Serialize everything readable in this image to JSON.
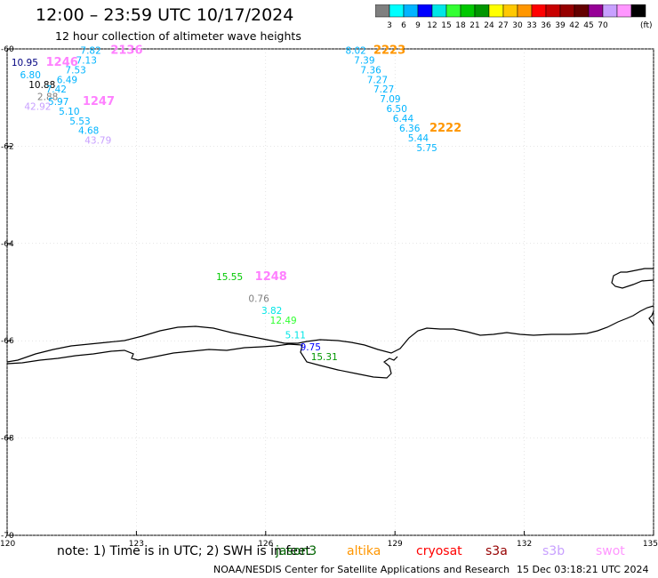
{
  "header": {
    "title": "12:00 – 23:59 UTC 10/17/2024",
    "subtitle": "12 hour collection of altimeter wave heights"
  },
  "colorbar": {
    "swatches": [
      "#7f7f7f",
      "#00ffff",
      "#00b4ff",
      "#0000ff",
      "#00e6e6",
      "#33ff33",
      "#00c800",
      "#009600",
      "#ffff00",
      "#ffc800",
      "#ff9600",
      "#ff0000",
      "#c80000",
      "#960000",
      "#640000",
      "#960096",
      "#c8a0ff",
      "#ff96ff",
      "#000000"
    ],
    "labels": [
      "3",
      "6",
      "9",
      "12",
      "15",
      "18",
      "21",
      "24",
      "27",
      "30",
      "33",
      "36",
      "39",
      "42",
      "45",
      "70"
    ],
    "unit": "(ft)"
  },
  "axes": {
    "x_ticks": [
      "120",
      "123",
      "126",
      "129",
      "132",
      "135"
    ],
    "y_ticks": [
      "-60",
      "-62",
      "-64",
      "-66",
      "-68",
      "-70"
    ]
  },
  "labels": [
    {
      "t": "2136",
      "c": "#ff80ff",
      "lon": 122.4,
      "lat": -60.1,
      "b": true
    },
    {
      "t": "7.82",
      "c": "#00b4ff",
      "lon": 121.7,
      "lat": -60.1
    },
    {
      "t": "7.13",
      "c": "#00b4ff",
      "lon": 121.6,
      "lat": -60.3
    },
    {
      "t": "1246",
      "c": "#ff80ff",
      "lon": 120.9,
      "lat": -60.35,
      "b": true
    },
    {
      "t": "10.95",
      "c": "#000080",
      "lon": 120.1,
      "lat": -60.35
    },
    {
      "t": "7.53",
      "c": "#00b4ff",
      "lon": 121.35,
      "lat": -60.5
    },
    {
      "t": "6.80",
      "c": "#00b4ff",
      "lon": 120.3,
      "lat": -60.6
    },
    {
      "t": "6.49",
      "c": "#00b4ff",
      "lon": 121.15,
      "lat": -60.7
    },
    {
      "t": "10.88",
      "c": "#000000",
      "lon": 120.5,
      "lat": -60.8
    },
    {
      "t": "7.42",
      "c": "#00b4ff",
      "lon": 120.9,
      "lat": -60.9
    },
    {
      "t": "2.88",
      "c": "#7f7f7f",
      "lon": 120.7,
      "lat": -61.05
    },
    {
      "t": "5.97",
      "c": "#00b4ff",
      "lon": 120.95,
      "lat": -61.15
    },
    {
      "t": "1247",
      "c": "#ff80ff",
      "lon": 121.75,
      "lat": -61.15,
      "b": true
    },
    {
      "t": "42.92",
      "c": "#c8a0ff",
      "lon": 120.4,
      "lat": -61.25
    },
    {
      "t": "5.10",
      "c": "#00b4ff",
      "lon": 121.2,
      "lat": -61.35
    },
    {
      "t": "5.53",
      "c": "#00b4ff",
      "lon": 121.45,
      "lat": -61.55
    },
    {
      "t": "4.68",
      "c": "#00b4ff",
      "lon": 121.65,
      "lat": -61.75
    },
    {
      "t": "43.79",
      "c": "#c8a0ff",
      "lon": 121.8,
      "lat": -61.95
    },
    {
      "t": "8.02",
      "c": "#00b4ff",
      "lon": 127.85,
      "lat": -60.1
    },
    {
      "t": "2223",
      "c": "#ff9600",
      "lon": 128.5,
      "lat": -60.1,
      "b": true
    },
    {
      "t": "7.39",
      "c": "#00b4ff",
      "lon": 128.05,
      "lat": -60.3
    },
    {
      "t": "7.36",
      "c": "#00b4ff",
      "lon": 128.2,
      "lat": -60.5
    },
    {
      "t": "7.27",
      "c": "#00b4ff",
      "lon": 128.35,
      "lat": -60.7
    },
    {
      "t": "7.27",
      "c": "#00b4ff",
      "lon": 128.5,
      "lat": -60.9
    },
    {
      "t": "7.09",
      "c": "#00b4ff",
      "lon": 128.65,
      "lat": -61.1
    },
    {
      "t": "6.50",
      "c": "#00b4ff",
      "lon": 128.8,
      "lat": -61.3
    },
    {
      "t": "6.44",
      "c": "#00b4ff",
      "lon": 128.95,
      "lat": -61.5
    },
    {
      "t": "6.36",
      "c": "#00b4ff",
      "lon": 129.1,
      "lat": -61.7
    },
    {
      "t": "2222",
      "c": "#ff9600",
      "lon": 129.8,
      "lat": -61.7,
      "b": true
    },
    {
      "t": "5.44",
      "c": "#00b4ff",
      "lon": 129.3,
      "lat": -61.9
    },
    {
      "t": "5.75",
      "c": "#00b4ff",
      "lon": 129.5,
      "lat": -62.1
    },
    {
      "t": "15.55",
      "c": "#00c800",
      "lon": 124.85,
      "lat": -64.75
    },
    {
      "t": "1248",
      "c": "#ff80ff",
      "lon": 125.75,
      "lat": -64.75,
      "b": true
    },
    {
      "t": "0.76",
      "c": "#7f7f7f",
      "lon": 125.6,
      "lat": -65.2
    },
    {
      "t": "3.82",
      "c": "#00e6e6",
      "lon": 125.9,
      "lat": -65.45
    },
    {
      "t": "12.49",
      "c": "#33ff33",
      "lon": 126.1,
      "lat": -65.65
    },
    {
      "t": "5.11",
      "c": "#00e6e6",
      "lon": 126.45,
      "lat": -65.95
    },
    {
      "t": "9.75",
      "c": "#0000ff",
      "lon": 126.8,
      "lat": -66.2
    },
    {
      "t": "15.31",
      "c": "#009600",
      "lon": 127.05,
      "lat": -66.4
    }
  ],
  "footer": {
    "note": "note:  1) Time is in UTC; 2) SWH is in feet",
    "satellites": [
      {
        "name": "jason3",
        "color": "#006400"
      },
      {
        "name": "altika",
        "color": "#ff9600"
      },
      {
        "name": "cryosat",
        "color": "#ff0000"
      },
      {
        "name": "s3a",
        "color": "#960000"
      },
      {
        "name": "s3b",
        "color": "#c8a0ff"
      },
      {
        "name": "swot",
        "color": "#ff96ff"
      }
    ],
    "credit": "NOAA/NESDIS Center for Satellite Applications and Research",
    "timestamp": "15 Dec 03:18:21 UTC 2024"
  }
}
